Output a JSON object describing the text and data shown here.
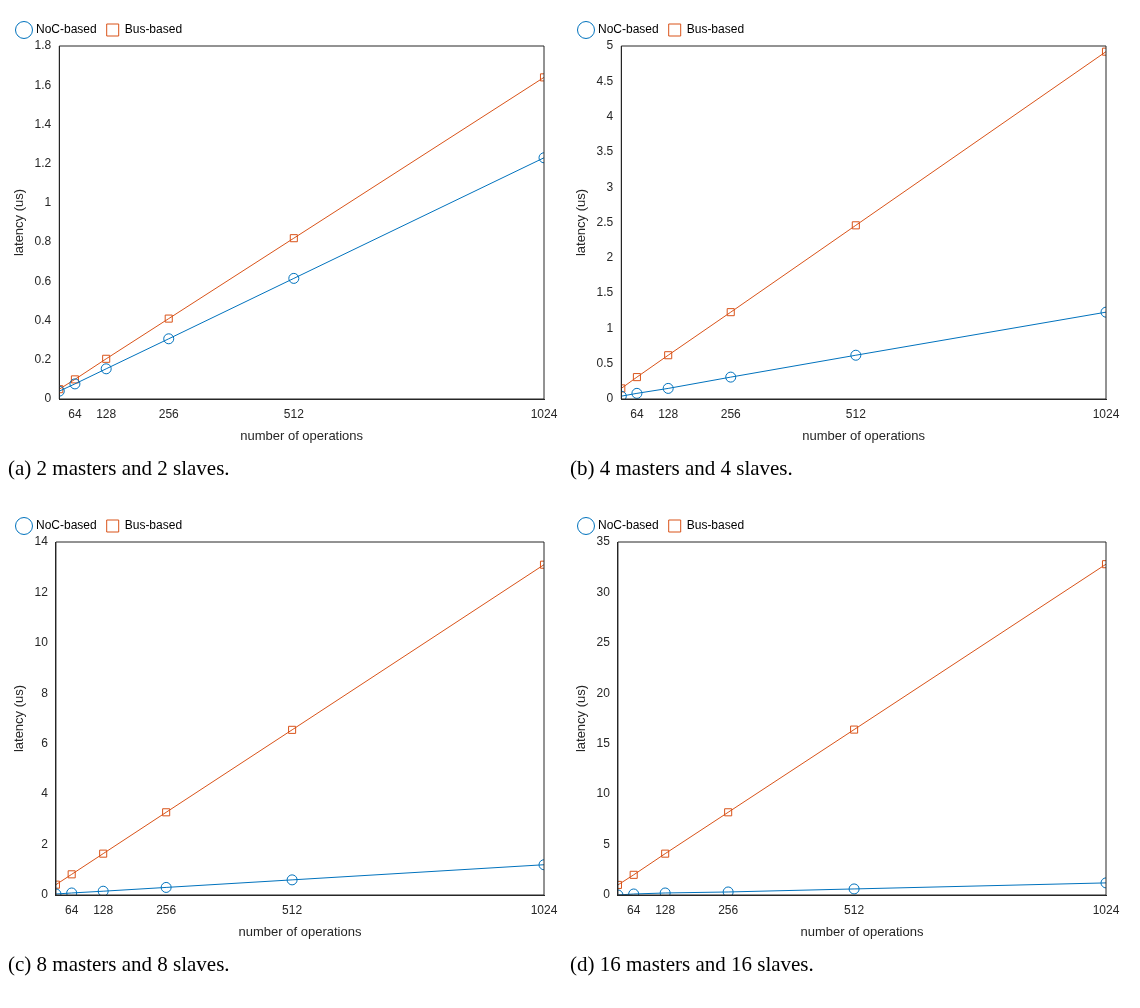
{
  "chart_data": [
    {
      "type": "line",
      "xlabel": "number of operations",
      "ylabel": "latency (us)",
      "annotations": [
        "(a) 2 masters and 2 slaves."
      ],
      "x": [
        32,
        64,
        128,
        256,
        512,
        1024
      ],
      "xlim": [
        32,
        1024
      ],
      "xticks": [
        64,
        128,
        256,
        512,
        1024
      ],
      "ylim": [
        0,
        1.8
      ],
      "yticks": [
        0,
        0.2,
        0.4,
        0.6,
        0.8,
        1,
        1.2,
        1.4,
        1.6,
        1.8
      ],
      "legend": "top left",
      "grid": false,
      "line_style": "solid",
      "series": [
        {
          "name": "NoC-based",
          "color": "#0072bd",
          "marker": "circle",
          "values": [
            0.04,
            0.077,
            0.154,
            0.307,
            0.615,
            1.23
          ]
        },
        {
          "name": "Bus-based",
          "color": "#d95319",
          "marker": "square",
          "values": [
            0.05,
            0.1,
            0.205,
            0.41,
            0.82,
            1.64
          ]
        }
      ]
    },
    {
      "type": "line",
      "xlabel": "number of operations",
      "ylabel": "latency (us)",
      "annotations": [
        "(b) 4 masters and 4 slaves."
      ],
      "x": [
        32,
        64,
        128,
        256,
        512,
        1024
      ],
      "xlim": [
        32,
        1024
      ],
      "xticks": [
        64,
        128,
        256,
        512,
        1024
      ],
      "ylim": [
        0,
        5
      ],
      "yticks": [
        0,
        0.5,
        1,
        1.5,
        2,
        2.5,
        3,
        3.5,
        4,
        4.5,
        5
      ],
      "legend": "top left",
      "grid": false,
      "line_style": "solid",
      "series": [
        {
          "name": "NoC-based",
          "color": "#0072bd",
          "marker": "circle",
          "values": [
            0.04,
            0.08,
            0.15,
            0.31,
            0.62,
            1.23
          ]
        },
        {
          "name": "Bus-based",
          "color": "#d95319",
          "marker": "square",
          "values": [
            0.15,
            0.31,
            0.62,
            1.23,
            2.46,
            4.92
          ]
        }
      ]
    },
    {
      "type": "line",
      "xlabel": "number of operations",
      "ylabel": "latency (us)",
      "annotations": [
        "(c) 8 masters and 8 slaves."
      ],
      "x": [
        32,
        64,
        128,
        256,
        512,
        1024
      ],
      "xlim": [
        32,
        1024
      ],
      "xticks": [
        64,
        128,
        256,
        512,
        1024
      ],
      "ylim": [
        0,
        14
      ],
      "yticks": [
        0,
        2,
        4,
        6,
        8,
        10,
        12,
        14
      ],
      "legend": "top left",
      "grid": false,
      "line_style": "solid",
      "series": [
        {
          "name": "NoC-based",
          "color": "#0072bd",
          "marker": "circle",
          "values": [
            0.04,
            0.08,
            0.15,
            0.3,
            0.6,
            1.2
          ]
        },
        {
          "name": "Bus-based",
          "color": "#d95319",
          "marker": "square",
          "values": [
            0.41,
            0.82,
            1.64,
            3.28,
            6.55,
            13.1
          ]
        }
      ]
    },
    {
      "type": "line",
      "xlabel": "number of operations",
      "ylabel": "latency (us)",
      "annotations": [
        "(d) 16 masters and 16 slaves."
      ],
      "x": [
        32,
        64,
        128,
        256,
        512,
        1024
      ],
      "xlim": [
        32,
        1024
      ],
      "xticks": [
        64,
        128,
        256,
        512,
        1024
      ],
      "ylim": [
        0,
        35
      ],
      "yticks": [
        0,
        5,
        10,
        15,
        20,
        25,
        30,
        35
      ],
      "legend": "top left",
      "grid": false,
      "line_style": "solid",
      "series": [
        {
          "name": "NoC-based",
          "color": "#0072bd",
          "marker": "circle",
          "values": [
            0,
            0.1,
            0.2,
            0.3,
            0.6,
            1.2
          ]
        },
        {
          "name": "Bus-based",
          "color": "#d95319",
          "marker": "square",
          "values": [
            1,
            2,
            4.1,
            8.2,
            16.4,
            32.8
          ]
        }
      ]
    }
  ]
}
